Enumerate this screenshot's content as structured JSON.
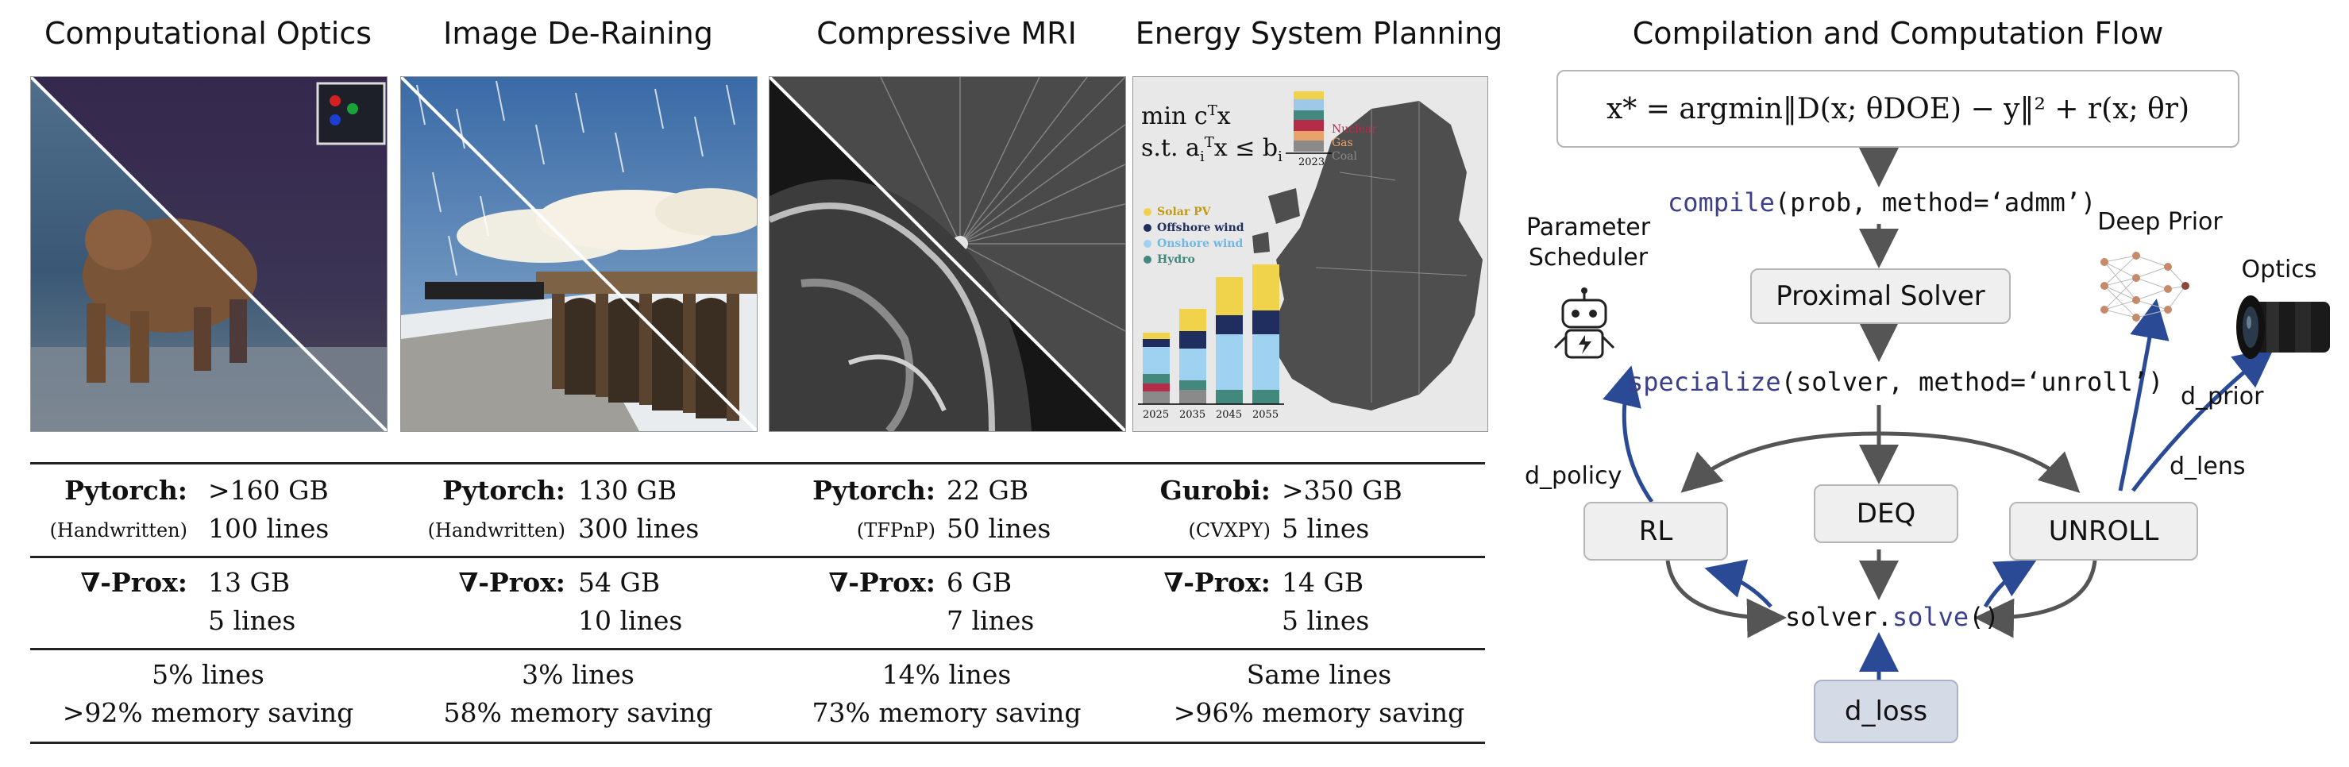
{
  "titles": {
    "optics": "Computational Optics",
    "derain": "Image De-Raining",
    "mri": "Compressive MRI",
    "energy": "Energy System Planning",
    "flow": "Compilation and Computation Flow"
  },
  "energy_panel": {
    "lp_line1": "min  c",
    "lp_line1_sup": "T",
    "lp_line1_end": "x",
    "lp_line2": "s.t. a",
    "lp_line2_sub": "i",
    "lp_line2_sup": "T",
    "lp_line2_end": "x  ≤ b",
    "lp_line2_sub2": "i",
    "legend_top": [
      "Nuclear",
      "Gas",
      "Coal"
    ],
    "top_year": "2023",
    "legend": [
      "Solar PV",
      "Offshore wind",
      "Onshore wind",
      "Hydro"
    ],
    "years": [
      "2025",
      "2035",
      "2045",
      "2055"
    ]
  },
  "table": {
    "rows": [
      {
        "baseline_name": "Pytorch:",
        "baseline_mem": ">160 GB",
        "baseline_note": "(Handwritten)",
        "baseline_lines": "100 lines",
        "prox_name": "∇-Prox:",
        "prox_mem": "13 GB",
        "prox_lines": "5 lines",
        "summary_lines": "5% lines",
        "summary_mem": ">92% memory saving"
      },
      {
        "baseline_name": "Pytorch:",
        "baseline_mem": "130 GB",
        "baseline_note": "(Handwritten)",
        "baseline_lines": "300 lines",
        "prox_name": "∇-Prox:",
        "prox_mem": "54 GB",
        "prox_lines": "10 lines",
        "summary_lines": "3% lines",
        "summary_mem": "58% memory saving"
      },
      {
        "baseline_name": "Pytorch:",
        "baseline_mem": "22 GB",
        "baseline_note": "(TFPnP)",
        "baseline_lines": "50 lines",
        "prox_name": "∇-Prox:",
        "prox_mem": "6 GB",
        "prox_lines": "7 lines",
        "summary_lines": "14% lines",
        "summary_mem": "73% memory saving"
      },
      {
        "baseline_name": "Gurobi:",
        "baseline_mem": ">350 GB",
        "baseline_note": "(CVXPY)",
        "baseline_lines": "5 lines",
        "prox_name": "∇-Prox:",
        "prox_mem": "14 GB",
        "prox_lines": "5 lines",
        "summary_lines": "Same lines",
        "summary_mem": ">96% memory saving"
      }
    ]
  },
  "flow": {
    "equation": "x* = argmin‖D(x; θDOE) − y‖² + r(x; θr)",
    "compile_kw": "compile",
    "compile_args": "(prob, method=‘admm’)",
    "proximal_solver": "Proximal Solver",
    "specialize_kw": "specialize",
    "specialize_args": "(solver, method=‘unroll’)",
    "rl": "RL",
    "deq": "DEQ",
    "unroll": "UNROLL",
    "solve_prefix": "solver.",
    "solve_kw": "solve",
    "solve_suffix": "()",
    "d_loss": "d_loss",
    "param_scheduler_1": "Parameter",
    "param_scheduler_2": "Scheduler",
    "deep_prior": "Deep Prior",
    "optics": "Optics",
    "d_policy": "d_policy",
    "d_prior": "d_prior",
    "d_lens": "d_lens"
  },
  "colors": {
    "arrow_dark": "#555555",
    "arrow_blue": "#2b4a96",
    "box_fill": "#efefef",
    "dloss_fill": "#d5dbe6",
    "code_keyword": "#3c3f8a"
  }
}
